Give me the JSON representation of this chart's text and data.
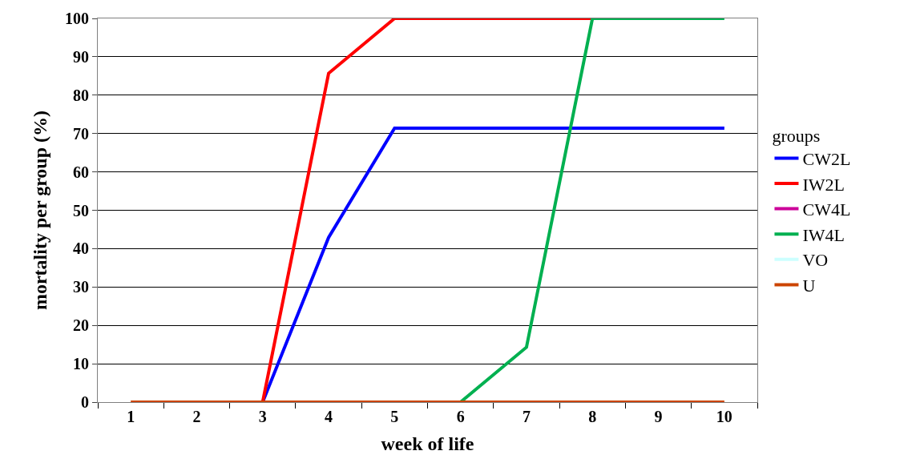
{
  "chart_data": {
    "type": "line",
    "xlabel": "week of life",
    "ylabel": "mortality per group (%)",
    "legend_title": "groups",
    "categories": [
      "1",
      "2",
      "3",
      "4",
      "5",
      "6",
      "7",
      "8",
      "9",
      "10"
    ],
    "series": [
      {
        "name": "CW2L",
        "color": "#0000ff",
        "values": [
          null,
          null,
          0,
          42.9,
          71.4,
          71.4,
          71.4,
          71.4,
          71.4,
          71.4
        ]
      },
      {
        "name": "IW2L",
        "color": "#ff0000",
        "values": [
          null,
          null,
          0,
          85.7,
          100,
          100,
          100,
          100,
          null,
          null
        ]
      },
      {
        "name": "CW4L",
        "color": "#cc0099",
        "values": [
          null,
          null,
          null,
          null,
          null,
          null,
          null,
          null,
          null,
          null
        ]
      },
      {
        "name": "IW4L",
        "color": "#00b050",
        "values": [
          null,
          null,
          null,
          null,
          null,
          0,
          14.3,
          100,
          100,
          100
        ]
      },
      {
        "name": "VO",
        "color": "#ccffff",
        "values": [
          null,
          null,
          null,
          null,
          null,
          null,
          null,
          null,
          null,
          null
        ]
      },
      {
        "name": "U",
        "color": "#cc4400",
        "values": [
          0,
          0,
          0,
          0,
          0,
          0,
          0,
          0,
          0,
          0
        ]
      }
    ],
    "ylim": [
      0,
      100
    ],
    "yticks": [
      0,
      10,
      20,
      30,
      40,
      50,
      60,
      70,
      80,
      90,
      100
    ],
    "grid": "y",
    "legend": "right",
    "marker": "none",
    "line_style": "solid"
  }
}
